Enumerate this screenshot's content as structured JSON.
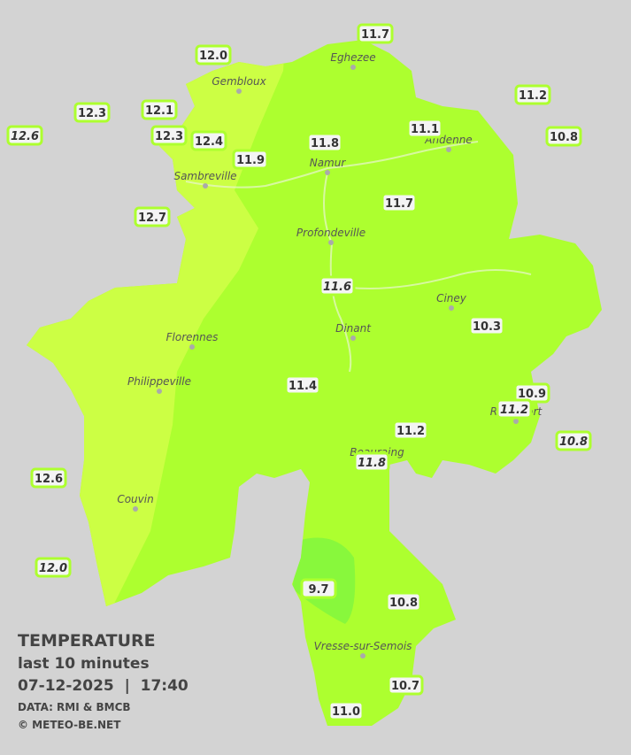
{
  "stations": [
    {
      "value": "11.7"
    },
    {
      "value": "12.0"
    },
    {
      "value": "11.2"
    },
    {
      "value": "12.3"
    },
    {
      "value": "12.1"
    },
    {
      "value": "11.1"
    },
    {
      "value": "12.6",
      "italic": true
    },
    {
      "value": "12.3"
    },
    {
      "value": "12.4"
    },
    {
      "value": "11.8"
    },
    {
      "value": "10.8"
    },
    {
      "value": "11.9"
    },
    {
      "value": "11.7"
    },
    {
      "value": "12.7"
    },
    {
      "value": "11.6",
      "italic": true
    },
    {
      "value": "10.3"
    },
    {
      "value": "11.4"
    },
    {
      "value": "10.9"
    },
    {
      "value": "11.2",
      "italic": true
    },
    {
      "value": "11.2"
    },
    {
      "value": "10.8",
      "italic": true
    },
    {
      "value": "11.8",
      "italic": true
    },
    {
      "value": "12.6"
    },
    {
      "value": "12.0",
      "italic": true
    },
    {
      "value": "9.7"
    },
    {
      "value": "10.8"
    },
    {
      "value": "10.7"
    },
    {
      "value": "11.0"
    }
  ],
  "towns": [
    "Eghezee",
    "Gembloux",
    "Andenne",
    "Namur",
    "Sambreville",
    "Profondeville",
    "Ciney",
    "Dinant",
    "Florennes",
    "Philippeville",
    "Rochefort",
    "Beauraing",
    "Couvin",
    "Vresse-sur-Semois"
  ],
  "legend": {
    "title": "TEMPERATURE",
    "subtitle": "last 10 minutes",
    "datetime": "07-12-2025  |  17:40",
    "source": "DATA: RMI & BMCB",
    "credit": "© METEO-BE.NET"
  }
}
